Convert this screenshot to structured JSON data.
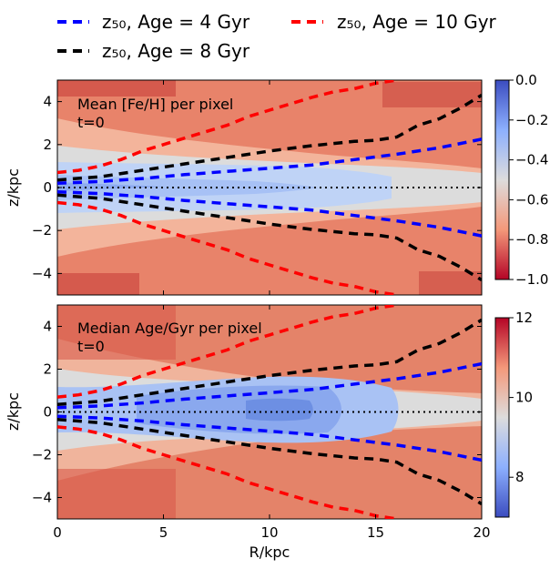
{
  "chart_data": [
    {
      "type": "heatmap",
      "panel": "top",
      "annotation_line1": "Mean [Fe/H] per pixel",
      "annotation_line2": "t=0",
      "xlabel": "R/kpc",
      "ylabel": "z/kpc",
      "xlim": [
        0,
        20
      ],
      "ylim": [
        -5,
        5
      ],
      "xticks": [
        0,
        5,
        10,
        15,
        20
      ],
      "yticks": [
        -4,
        -2,
        0,
        2,
        4
      ],
      "colorbar": {
        "colormap": "coolwarm_reversed",
        "range": [
          -1.0,
          0.0
        ],
        "ticks": [
          "0.0",
          "−0.2",
          "−0.4",
          "−0.6",
          "−0.8",
          "−1.0"
        ],
        "tick_values": [
          0.0,
          -0.2,
          -0.4,
          -0.6,
          -0.8,
          -1.0
        ]
      }
    },
    {
      "type": "heatmap",
      "panel": "bottom",
      "annotation_line1": "Median Age/Gyr per pixel",
      "annotation_line2": "t=0",
      "xlabel": "R/kpc",
      "ylabel": "z/kpc",
      "xlim": [
        0,
        20
      ],
      "ylim": [
        -5,
        5
      ],
      "xticks": [
        0,
        5,
        10,
        15,
        20
      ],
      "yticks": [
        -4,
        -2,
        0,
        2,
        4
      ],
      "colorbar": {
        "colormap": "coolwarm",
        "range": [
          7,
          12
        ],
        "ticks": [
          "12",
          "10",
          "8"
        ],
        "tick_values": [
          12,
          10,
          8
        ]
      }
    }
  ],
  "legend": [
    {
      "label": "z₅₀, Age = 4 Gyr",
      "color": "#0000ff",
      "style": "dashed"
    },
    {
      "label": "z₅₀, Age = 10 Gyr",
      "color": "#ff0000",
      "style": "dashed"
    },
    {
      "label": "z₅₀, Age = 8 Gyr",
      "color": "#000000",
      "style": "dashed"
    }
  ],
  "series": [
    {
      "name": "z50 Age = 4 Gyr",
      "color": "#0000ff",
      "R": [
        0,
        2,
        4,
        6,
        8,
        10,
        12,
        14,
        16,
        18,
        20
      ],
      "z": [
        0.2,
        0.28,
        0.42,
        0.6,
        0.75,
        0.9,
        1.05,
        1.3,
        1.55,
        1.85,
        2.25
      ]
    },
    {
      "name": "z50 Age = 8 Gyr",
      "color": "#000000",
      "R": [
        0,
        2,
        4,
        6,
        8,
        10,
        12,
        14,
        15,
        16,
        17,
        18,
        19,
        20
      ],
      "z": [
        0.35,
        0.5,
        0.8,
        1.1,
        1.4,
        1.7,
        1.95,
        2.15,
        2.2,
        2.35,
        2.9,
        3.2,
        3.7,
        4.3
      ]
    },
    {
      "name": "z50 Age = 10 Gyr",
      "color": "#ff0000",
      "R": [
        0,
        1,
        2,
        3,
        4,
        5,
        6,
        7,
        8,
        9,
        10,
        11,
        12,
        13,
        14,
        15,
        16
      ],
      "z": [
        0.7,
        0.8,
        1.0,
        1.3,
        1.7,
        2.0,
        2.3,
        2.6,
        2.9,
        3.3,
        3.6,
        3.9,
        4.2,
        4.45,
        4.6,
        4.85,
        5.0
      ]
    }
  ],
  "midplane": {
    "z": 0,
    "style": "dotted",
    "color": "#000000"
  }
}
